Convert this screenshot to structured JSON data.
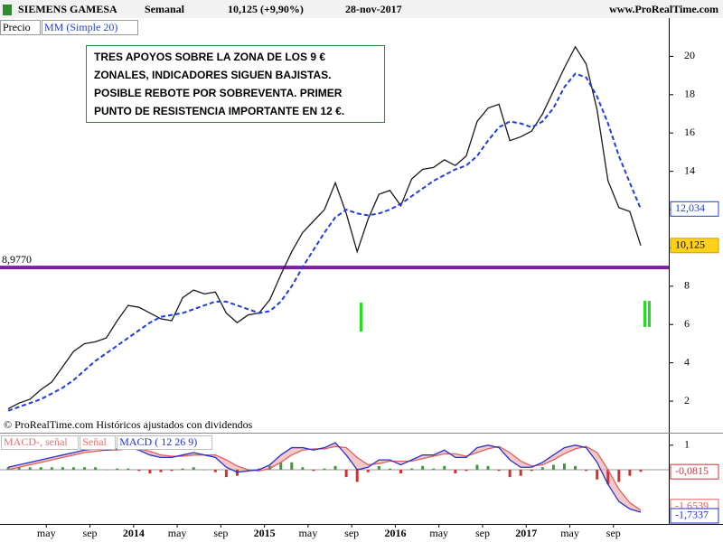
{
  "header": {
    "symbol": "SIEMENS GAMESA",
    "period": "Semanal",
    "last": "10,125 (+9,90%)",
    "date": "28-nov-2017",
    "site": "www.ProRealTime.com"
  },
  "copyright": "© ProRealTime.com  Históricos ajustados con dividendos",
  "annotation": [
    "TRES APOYOS SOBRE LA ZONA DE LOS 9 €",
    "ZONALES, INDICADORES SIGUEN BAJISTAS.",
    "POSIBLE REBOTE POR SOBREVENTA. PRIMER",
    "PUNTO DE RESISTENCIA IMPORTANTE EN 12 €."
  ],
  "chart_data": [
    {
      "type": "line",
      "x": [
        "2013-01",
        "2013-02",
        "2013-03",
        "2013-04",
        "2013-05",
        "2013-06",
        "2013-07",
        "2013-08",
        "2013-09",
        "2013-10",
        "2013-11",
        "2013-12",
        "2014-01",
        "2014-02",
        "2014-03",
        "2014-04",
        "2014-05",
        "2014-06",
        "2014-07",
        "2014-08",
        "2014-09",
        "2014-10",
        "2014-11",
        "2014-12",
        "2015-01",
        "2015-02",
        "2015-03",
        "2015-04",
        "2015-05",
        "2015-06",
        "2015-07",
        "2015-08",
        "2015-09",
        "2015-10",
        "2015-11",
        "2015-12",
        "2016-01",
        "2016-02",
        "2016-03",
        "2016-04",
        "2016-05",
        "2016-06",
        "2016-07",
        "2016-08",
        "2016-09",
        "2016-10",
        "2016-11",
        "2016-12",
        "2017-01",
        "2017-02",
        "2017-03",
        "2017-04",
        "2017-05",
        "2017-06",
        "2017-07",
        "2017-08",
        "2017-09",
        "2017-10",
        "2017-11"
      ],
      "series": [
        {
          "name": "Precio",
          "color": "#1a1a1a",
          "last_label": "10,125",
          "values": [
            1.6,
            1.9,
            2.1,
            2.6,
            3.0,
            3.8,
            4.6,
            5.0,
            5.1,
            5.3,
            6.2,
            7.0,
            6.9,
            6.6,
            6.3,
            6.2,
            7.4,
            7.8,
            7.6,
            7.7,
            6.6,
            6.1,
            6.5,
            6.6,
            7.3,
            8.6,
            9.8,
            10.8,
            11.4,
            12.0,
            13.4,
            11.8,
            9.8,
            11.5,
            12.8,
            13.0,
            12.2,
            13.6,
            14.1,
            14.2,
            14.6,
            14.3,
            14.8,
            16.6,
            17.3,
            17.5,
            15.6,
            15.8,
            16.1,
            17.0,
            18.2,
            19.4,
            20.5,
            19.6,
            17.2,
            13.5,
            12.1,
            11.9,
            10.125
          ]
        },
        {
          "name": "MM (Simple 20)",
          "color": "#1f3fd6",
          "dashed": true,
          "last_label": "12,034",
          "values": [
            1.5,
            1.7,
            1.9,
            2.1,
            2.4,
            2.7,
            3.1,
            3.6,
            4.1,
            4.5,
            4.9,
            5.3,
            5.7,
            6.1,
            6.4,
            6.5,
            6.6,
            6.8,
            7.0,
            7.2,
            7.2,
            7.0,
            6.8,
            6.6,
            6.7,
            7.2,
            8.0,
            9.0,
            9.9,
            10.8,
            11.6,
            12.0,
            11.8,
            11.7,
            11.8,
            12.0,
            12.3,
            12.7,
            13.1,
            13.5,
            13.8,
            14.1,
            14.3,
            14.8,
            15.6,
            16.3,
            16.6,
            16.5,
            16.3,
            16.6,
            17.3,
            18.4,
            19.1,
            18.9,
            17.9,
            16.5,
            14.8,
            13.4,
            12.034
          ]
        }
      ],
      "support": {
        "value": 8.977,
        "label": "8,9770",
        "color": "#7a1fa0"
      },
      "xlim": [
        "2013-01",
        "2017-12"
      ],
      "xticks": [
        {
          "value": "2013-05",
          "label": "may"
        },
        {
          "value": "2013-09",
          "label": "sep"
        },
        {
          "value": "2014-01",
          "label": "2014"
        },
        {
          "value": "2014-05",
          "label": "may"
        },
        {
          "value": "2014-09",
          "label": "sep"
        },
        {
          "value": "2015-01",
          "label": "2015"
        },
        {
          "value": "2015-05",
          "label": "may"
        },
        {
          "value": "2015-09",
          "label": "sep"
        },
        {
          "value": "2016-01",
          "label": "2016"
        },
        {
          "value": "2016-05",
          "label": "may"
        },
        {
          "value": "2016-09",
          "label": "sep"
        },
        {
          "value": "2017-01",
          "label": "2017"
        },
        {
          "value": "2017-05",
          "label": "may"
        },
        {
          "value": "2017-09",
          "label": "sep"
        }
      ],
      "ylim": [
        0.4,
        22
      ],
      "yticks": [
        2,
        4,
        6,
        8,
        10,
        12,
        14,
        16,
        18,
        20
      ]
    },
    {
      "type": "line",
      "histogram": {
        "name": "MACD-, señal",
        "color_up": "#3a9a3a",
        "color_down": "#cc3333",
        "last_label": "-0,0815",
        "values": [
          0.1,
          0.1,
          0.1,
          0.1,
          0.1,
          0.1,
          0.1,
          0.1,
          0.1,
          0,
          0.05,
          0.05,
          -0.05,
          -0.15,
          -0.1,
          -0.05,
          0.05,
          0.1,
          0,
          -0.1,
          -0.3,
          -0.25,
          -0.05,
          0.05,
          0.15,
          0.3,
          0.3,
          0.1,
          -0.05,
          0.05,
          0.15,
          -0.3,
          -0.5,
          -0.1,
          0.15,
          0.05,
          -0.15,
          0.05,
          0.15,
          0.05,
          0.15,
          -0.15,
          -0.05,
          0.2,
          0.15,
          -0.05,
          -0.3,
          -0.25,
          -0.05,
          0.1,
          0.2,
          0.25,
          0.15,
          -0.05,
          -0.4,
          -0.6,
          -0.5,
          -0.25,
          -0.0815
        ]
      },
      "series": [
        {
          "name": "Señal",
          "color": "#e06060",
          "last_label": "-1,6539",
          "values": [
            0.0,
            0.1,
            0.2,
            0.3,
            0.4,
            0.5,
            0.6,
            0.7,
            0.75,
            0.8,
            0.8,
            0.85,
            0.85,
            0.75,
            0.6,
            0.55,
            0.55,
            0.6,
            0.6,
            0.6,
            0.4,
            0.15,
            0.0,
            -0.05,
            0.05,
            0.3,
            0.6,
            0.8,
            0.85,
            0.85,
            0.95,
            0.9,
            0.5,
            0.2,
            0.25,
            0.35,
            0.35,
            0.35,
            0.45,
            0.55,
            0.65,
            0.65,
            0.55,
            0.7,
            0.85,
            0.95,
            0.7,
            0.35,
            0.15,
            0.2,
            0.4,
            0.65,
            0.85,
            0.95,
            0.7,
            0.0,
            -0.8,
            -1.35,
            -1.6539
          ]
        },
        {
          "name": "MACD ( 12 26 9)",
          "color": "#2233cc",
          "last_label": "-1,7337",
          "values": [
            0.1,
            0.2,
            0.3,
            0.4,
            0.5,
            0.6,
            0.7,
            0.8,
            0.85,
            0.8,
            0.85,
            0.9,
            0.8,
            0.6,
            0.5,
            0.5,
            0.6,
            0.7,
            0.6,
            0.5,
            0.1,
            -0.1,
            -0.05,
            0.0,
            0.2,
            0.6,
            0.9,
            0.9,
            0.8,
            0.9,
            1.1,
            0.6,
            0.0,
            0.1,
            0.4,
            0.4,
            0.2,
            0.4,
            0.6,
            0.6,
            0.8,
            0.5,
            0.5,
            0.9,
            1.0,
            0.9,
            0.4,
            0.1,
            0.1,
            0.3,
            0.6,
            0.9,
            1.0,
            0.9,
            0.3,
            -0.6,
            -1.3,
            -1.6,
            -1.7337
          ]
        }
      ],
      "ylim": [
        -2.14,
        1.4
      ],
      "yticks": [
        1
      ]
    }
  ]
}
